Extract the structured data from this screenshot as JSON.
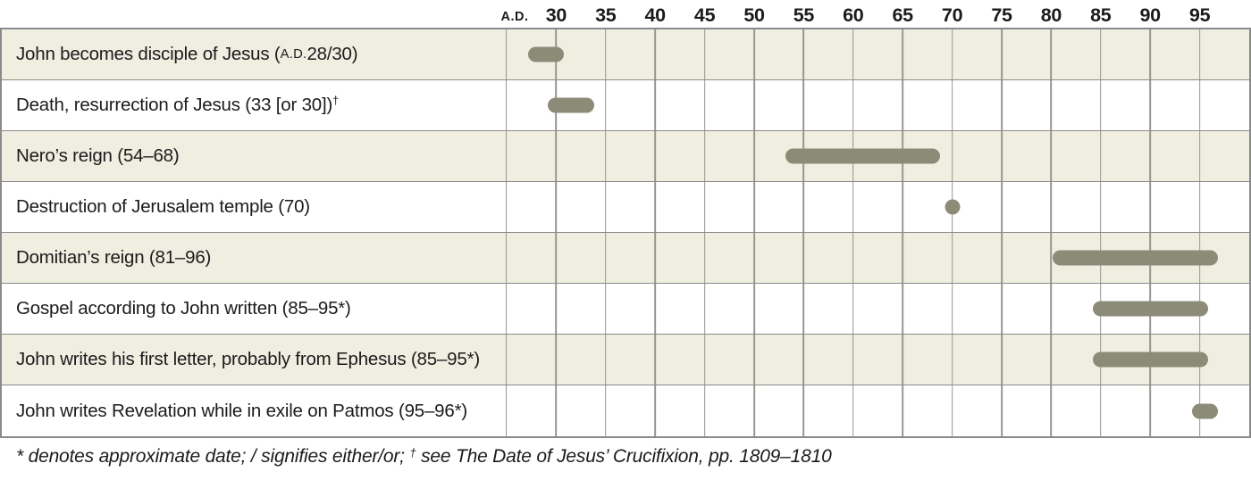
{
  "chart_data": {
    "type": "bar",
    "variant": "horizontal-timeline-gantt",
    "title": "",
    "axis": {
      "unit_label": "A.D.",
      "ticks": [
        30,
        35,
        40,
        45,
        50,
        55,
        60,
        65,
        70,
        75,
        80,
        85,
        90,
        95
      ],
      "range": [
        25,
        100
      ],
      "position": "top",
      "grid": true
    },
    "rows": [
      {
        "label": "John becomes disciple of Jesus (A.D. 28/30)",
        "label_parts": [
          {
            "text": "John becomes disciple of Jesus ("
          },
          {
            "text": "A.D.",
            "style": "sc"
          },
          {
            "text": " 28/30)"
          }
        ],
        "shape": "bar",
        "start": 28,
        "end": 30
      },
      {
        "label": "Death, resurrection of Jesus (33 [or 30])†",
        "label_parts": [
          {
            "text": "Death, resurrection of Jesus (33 [or 30])"
          },
          {
            "text": "†",
            "style": "sup"
          }
        ],
        "shape": "bar",
        "start": 30,
        "end": 33
      },
      {
        "label": "Nero’s reign (54–68)",
        "label_parts": [
          {
            "text": "Nero’s reign (54–68)"
          }
        ],
        "shape": "bar",
        "start": 54,
        "end": 68
      },
      {
        "label": "Destruction of Jerusalem temple (70)",
        "label_parts": [
          {
            "text": "Destruction of Jerusalem temple (70)"
          }
        ],
        "shape": "point",
        "year": 70
      },
      {
        "label": "Domitian’s reign (81–96)",
        "label_parts": [
          {
            "text": "Domitian’s reign (81–96)"
          }
        ],
        "shape": "bar",
        "start": 81,
        "end": 96
      },
      {
        "label": "Gospel according to John written (85–95*)",
        "label_parts": [
          {
            "text": "Gospel according to John written (85–95*)"
          }
        ],
        "shape": "bar",
        "start": 85,
        "end": 95
      },
      {
        "label": "John writes his first letter, probably from Ephesus (85–95*)",
        "label_parts": [
          {
            "text": "John writes his first letter, probably from Ephesus (85–95*)"
          }
        ],
        "shape": "bar",
        "start": 85,
        "end": 95
      },
      {
        "label": "John writes Revelation while in exile on Patmos (95–96*)",
        "label_parts": [
          {
            "text": "John writes Revelation while in exile on Patmos (95–96*)"
          }
        ],
        "shape": "bar",
        "start": 95,
        "end": 96
      }
    ],
    "footnote": {
      "text": "* denotes approximate date; / signifies either/or; † see The Date of Jesus’ Crucifixion, pp. 1809–1810",
      "parts": [
        {
          "text": "* denotes approximate date; / signifies either/or; "
        },
        {
          "text": "†",
          "style": "sup"
        },
        {
          "text": " see The Date of Jesus’ Crucifixion, pp. 1809–1810"
        }
      ]
    },
    "colors": {
      "bar": "#8b8b78",
      "row_alt_bg": "#efeee1",
      "row_bg": "#ffffff",
      "grid_line": "#979790",
      "border": "#8a8a8a",
      "text": "#1b1b1b"
    }
  }
}
